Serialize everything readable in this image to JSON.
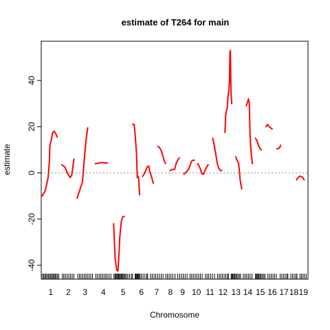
{
  "chart_data": {
    "type": "line",
    "title": "estimate of T264 for main",
    "xlabel": "Chromosome",
    "ylabel": "estimate",
    "ylim": [
      -46,
      57
    ],
    "yticks": [
      -40,
      -20,
      0,
      20,
      40
    ],
    "reference_line": 0,
    "grid": false,
    "legend": "none",
    "colors": {
      "line": "#ff0000",
      "zero_line": "#bebebe",
      "axes": "#000000",
      "rug": "#000000"
    },
    "chromosomes": [
      {
        "label": "1",
        "start": 0,
        "end": 11.5
      },
      {
        "label": "2",
        "start": 13,
        "end": 21.5
      },
      {
        "label": "3",
        "start": 23,
        "end": 33.5
      },
      {
        "label": "4",
        "start": 35,
        "end": 45.5
      },
      {
        "label": "5",
        "start": 47,
        "end": 59.5
      },
      {
        "label": "6",
        "start": 61,
        "end": 69.5
      },
      {
        "label": "7",
        "start": 71,
        "end": 79.5
      },
      {
        "label": "8",
        "start": 81,
        "end": 87.5
      },
      {
        "label": "9",
        "start": 89,
        "end": 95.5
      },
      {
        "label": "10",
        "start": 97,
        "end": 105.5
      },
      {
        "label": "11",
        "start": 107,
        "end": 113.5
      },
      {
        "label": "12",
        "start": 115,
        "end": 122.5
      },
      {
        "label": "13",
        "start": 124,
        "end": 130.5
      },
      {
        "label": "14",
        "start": 132,
        "end": 138
      },
      {
        "label": "15",
        "start": 140,
        "end": 146.5
      },
      {
        "label": "16",
        "start": 148,
        "end": 154
      },
      {
        "label": "17",
        "start": 156,
        "end": 161.5
      },
      {
        "label": "18",
        "start": 163,
        "end": 167.5
      },
      {
        "label": "19",
        "start": 169,
        "end": 174
      }
    ],
    "series": [
      {
        "chromosome": "1",
        "points": [
          [
            0,
            -10
          ],
          [
            2,
            -8
          ],
          [
            3,
            -5
          ],
          [
            4,
            -2
          ],
          [
            4.8,
            5
          ],
          [
            5.2,
            12
          ],
          [
            6,
            14
          ],
          [
            7,
            17.5
          ],
          [
            8,
            18
          ],
          [
            9,
            17
          ],
          [
            10,
            15.5
          ]
        ]
      },
      {
        "chromosome": "2",
        "points": [
          [
            13,
            3.5
          ],
          [
            15,
            2.5
          ],
          [
            16,
            1
          ],
          [
            17,
            -0.5
          ],
          [
            18.5,
            -2
          ],
          [
            19.5,
            -1
          ],
          [
            20.5,
            4
          ],
          [
            21,
            6
          ]
        ]
      },
      {
        "chromosome": "3",
        "points": [
          [
            23,
            -11
          ],
          [
            24,
            -9
          ],
          [
            25,
            -7
          ],
          [
            26.5,
            -4
          ],
          [
            27,
            0
          ],
          [
            28,
            8
          ],
          [
            29,
            15
          ],
          [
            30,
            19.5
          ]
        ]
      },
      {
        "chromosome": "4",
        "points": [
          [
            35,
            4
          ],
          [
            37,
            4.2
          ],
          [
            39,
            4.5
          ],
          [
            41,
            4.3
          ],
          [
            43,
            4.3
          ]
        ]
      },
      {
        "chromosome": "5",
        "points": [
          [
            47,
            -22
          ],
          [
            47.5,
            -30
          ],
          [
            48,
            -37
          ],
          [
            49,
            -42
          ],
          [
            49.8,
            -42.5
          ],
          [
            50.5,
            -35
          ],
          [
            51,
            -28
          ],
          [
            52,
            -21
          ],
          [
            53,
            -19
          ],
          [
            54,
            -18.8
          ]
        ]
      },
      {
        "chromosome": "6",
        "points": [
          [
            59.5,
            21
          ],
          [
            60.5,
            21
          ],
          [
            61,
            17
          ],
          [
            61.5,
            13
          ],
          [
            62,
            8
          ],
          [
            62.5,
            -2
          ],
          [
            63,
            -1.5
          ],
          [
            63.5,
            -3
          ],
          [
            64,
            -9.5
          ]
        ]
      },
      {
        "chromosome": "7",
        "points": [
          [
            66,
            -1.5
          ],
          [
            67,
            -0.5
          ],
          [
            68,
            1
          ],
          [
            69,
            2.5
          ],
          [
            70,
            3
          ],
          [
            71,
            0
          ],
          [
            72,
            -2
          ],
          [
            73,
            -4.5
          ]
        ]
      },
      {
        "chromosome": "8",
        "points": [
          [
            76,
            11.5
          ],
          [
            77,
            11
          ],
          [
            78,
            10
          ],
          [
            79,
            8
          ],
          [
            80,
            5.5
          ],
          [
            81,
            4
          ]
        ]
      },
      {
        "chromosome": "9",
        "points": [
          [
            84,
            1
          ],
          [
            85.5,
            1.5
          ],
          [
            87,
            1.5
          ],
          [
            88,
            4
          ],
          [
            89,
            5.5
          ],
          [
            90,
            6.5
          ]
        ]
      },
      {
        "chromosome": "10",
        "points": [
          [
            93,
            -0.5
          ],
          [
            94,
            0
          ],
          [
            95,
            0.5
          ],
          [
            96,
            1.5
          ],
          [
            97,
            3
          ],
          [
            98,
            5
          ],
          [
            99,
            5.5
          ],
          [
            100,
            5.5
          ]
        ]
      },
      {
        "chromosome": "11",
        "points": [
          [
            102,
            4
          ],
          [
            103,
            3
          ],
          [
            104,
            1.5
          ],
          [
            105,
            -0.5
          ],
          [
            106,
            -0.5
          ],
          [
            107,
            1
          ],
          [
            108,
            2.5
          ],
          [
            109,
            3.5
          ]
        ]
      },
      {
        "chromosome": "12",
        "points": [
          [
            112,
            15
          ],
          [
            113,
            12
          ],
          [
            114,
            8
          ],
          [
            115,
            4
          ],
          [
            116,
            2
          ],
          [
            117,
            1
          ],
          [
            118,
            1
          ]
        ]
      },
      {
        "chromosome": "13",
        "points": [
          [
            120,
            17.5
          ],
          [
            120.5,
            25
          ],
          [
            121,
            27
          ],
          [
            121.5,
            28
          ],
          [
            122,
            33
          ],
          [
            122.5,
            35
          ],
          [
            123,
            40
          ],
          [
            123.3,
            52
          ],
          [
            123.6,
            53
          ],
          [
            124,
            35
          ],
          [
            124.5,
            30
          ]
        ]
      },
      {
        "chromosome": "14",
        "points": [
          [
            127,
            7
          ],
          [
            128,
            5.5
          ],
          [
            129,
            4
          ],
          [
            129.5,
            1
          ],
          [
            130,
            -3
          ],
          [
            130.5,
            -5
          ],
          [
            131,
            -7
          ]
        ]
      },
      {
        "chromosome": "15",
        "points": [
          [
            134,
            29
          ],
          [
            135,
            31
          ],
          [
            135.5,
            32
          ],
          [
            136,
            30
          ],
          [
            136.5,
            17
          ],
          [
            137,
            10
          ],
          [
            138,
            4
          ]
        ]
      },
      {
        "chromosome": "16",
        "points": [
          [
            140,
            15
          ],
          [
            141,
            14
          ],
          [
            142,
            12
          ],
          [
            143,
            10.5
          ],
          [
            144,
            10
          ]
        ]
      },
      {
        "chromosome": "17",
        "points": [
          [
            147,
            20
          ],
          [
            148,
            21
          ],
          [
            149,
            20
          ],
          [
            150,
            19.5
          ],
          [
            151,
            19
          ]
        ]
      },
      {
        "chromosome": "18",
        "points": [
          [
            154,
            10.5
          ],
          [
            155,
            10.5
          ],
          [
            156,
            11
          ],
          [
            156.5,
            12
          ]
        ]
      },
      {
        "chromosome": "19",
        "points": [
          [
            167,
            -3
          ],
          [
            168,
            -2
          ],
          [
            169,
            -1.5
          ],
          [
            170,
            -1.5
          ],
          [
            171,
            -2
          ],
          [
            172,
            -3
          ]
        ]
      }
    ],
    "markers": [
      0.3,
      1.1,
      1.9,
      2.6,
      3.4,
      4.2,
      5.0,
      5.7,
      6.5,
      7.2,
      7.9,
      8.6,
      9.3,
      10.1,
      11.0,
      13.4,
      14.3,
      15.3,
      16.5,
      17.6,
      18.7,
      19.8,
      20.9,
      23.5,
      24.6,
      25.6,
      26.7,
      27.8,
      28.8,
      29.8,
      30.9,
      32.0,
      33.1,
      35.3,
      36.4,
      37.5,
      38.6,
      39.6,
      40.7,
      41.8,
      42.8,
      44.0,
      45.2,
      47.2,
      47.9,
      48.5,
      49.1,
      49.7,
      50.2,
      50.8,
      51.4,
      52.0,
      52.6,
      53.2,
      53.9,
      54.6,
      55.4,
      56.3,
      57.4,
      58.6,
      59.4,
      61.1,
      61.6,
      62.1,
      62.6,
      63.1,
      63.6,
      64.3,
      65.2,
      66.3,
      67.5,
      68.7,
      69.3,
      71.2,
      72.3,
      73.5,
      74.6,
      75.8,
      77.0,
      78.2,
      79.4,
      81.2,
      82.3,
      83.4,
      84.6,
      85.8,
      87.2,
      89.1,
      90.3,
      91.5,
      92.7,
      93.9,
      95.2,
      97.1,
      98.2,
      99.3,
      100.5,
      101.6,
      102.8,
      103.9,
      105.1,
      107.2,
      108.3,
      109.4,
      110.6,
      111.8,
      113.2,
      115.2,
      116.3,
      117.3,
      118.4,
      119.5,
      120.6,
      121.7,
      122.3,
      124.1,
      124.6,
      125.2,
      125.8,
      126.4,
      127.1,
      127.8,
      128.6,
      129.5,
      130.3,
      132.1,
      133.2,
      134.3,
      135.4,
      136.5,
      137.7,
      140.1,
      140.6,
      141.2,
      141.8,
      142.4,
      143.1,
      143.8,
      144.6,
      145.5,
      146.3,
      148.2,
      149.3,
      150.4,
      151.5,
      152.6,
      153.8,
      156.2,
      157.3,
      158.4,
      159.5,
      160.6,
      161.3,
      163.2,
      164.3,
      165.4,
      166.5,
      167.3,
      169.2,
      170.2,
      171.2,
      172.2,
      173.3
    ]
  }
}
